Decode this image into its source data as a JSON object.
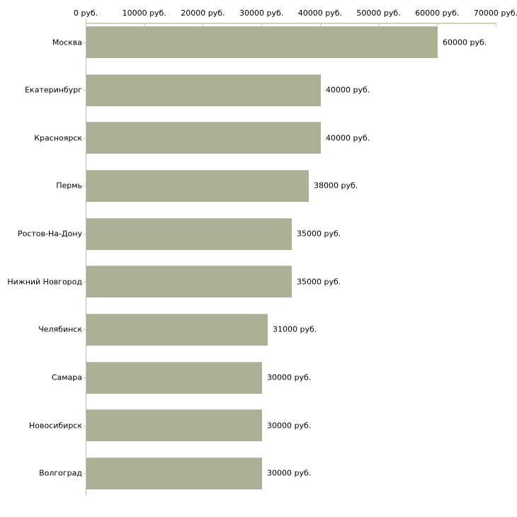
{
  "chart_data": {
    "type": "bar",
    "orientation": "horizontal",
    "title": "",
    "unit": "руб.",
    "categories": [
      "Москва",
      "Екатеринбург",
      "Красноярск",
      "Пермь",
      "Ростов-На-Дону",
      "Нижний Новгород",
      "Челябинск",
      "Самара",
      "Новосибирск",
      "Волгоград"
    ],
    "values": [
      60000,
      40000,
      40000,
      38000,
      35000,
      35000,
      31000,
      30000,
      30000,
      30000
    ],
    "value_labels": [
      "60000 руб.",
      "40000 руб.",
      "40000 руб.",
      "38000 руб.",
      "35000 руб.",
      "35000 руб.",
      "31000 руб.",
      "30000 руб.",
      "30000 руб.",
      "30000 руб."
    ],
    "x_axis": {
      "position": "top",
      "range": [
        0,
        70000
      ],
      "ticks": [
        0,
        10000,
        20000,
        30000,
        40000,
        50000,
        60000,
        70000
      ],
      "tick_labels": [
        "0 руб.",
        "10000 руб.",
        "20000 руб.",
        "30000 руб.",
        "40000 руб.",
        "50000 руб.",
        "60000 руб.",
        "70000 руб."
      ]
    },
    "grid": false,
    "legend": "none",
    "colors": {
      "bar_fill": "#acb196",
      "axis_line": "#d2d0ba",
      "tick_mark": "#cfcdb4",
      "baseline": "#bbbbbb",
      "text": "#000000",
      "background": "#ffffff"
    }
  }
}
